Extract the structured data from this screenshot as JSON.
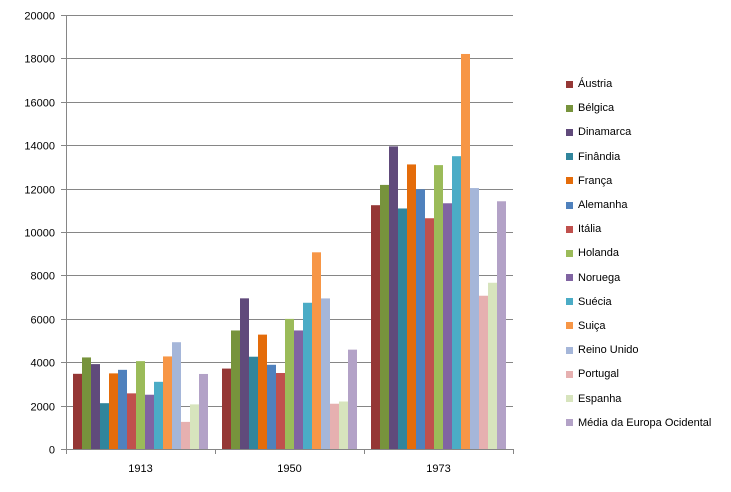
{
  "chart_data": {
    "type": "bar",
    "title": "",
    "xlabel": "",
    "ylabel": "",
    "ylim": [
      0,
      20000
    ],
    "yticks": [
      0,
      2000,
      4000,
      6000,
      8000,
      10000,
      12000,
      14000,
      16000,
      18000,
      20000
    ],
    "grid": true,
    "legend_position": "right",
    "categories": [
      "1913",
      "1950",
      "1973"
    ],
    "series": [
      {
        "name": "Áustria",
        "color": "#953735",
        "values": [
          3465,
          3706,
          11235
        ]
      },
      {
        "name": "Bélgica",
        "color": "#77933C",
        "values": [
          4220,
          5462,
          12170
        ]
      },
      {
        "name": "Dinamarca",
        "color": "#604A7B",
        "values": [
          3912,
          6943,
          13945
        ]
      },
      {
        "name": "Finândia",
        "color": "#31859C",
        "values": [
          2111,
          4253,
          11085
        ]
      },
      {
        "name": "França",
        "color": "#E46C0A",
        "values": [
          3485,
          5271,
          13114
        ]
      },
      {
        "name": "Alemanha",
        "color": "#4F81BD",
        "values": [
          3648,
          3881,
          11966
        ]
      },
      {
        "name": "Itália",
        "color": "#C0504D",
        "values": [
          2564,
          3502,
          10634
        ]
      },
      {
        "name": "Holanda",
        "color": "#9BBB59",
        "values": [
          4049,
          5996,
          13082
        ]
      },
      {
        "name": "Noruega",
        "color": "#8064A2",
        "values": [
          2501,
          5463,
          11324
        ]
      },
      {
        "name": "Suécia",
        "color": "#4BACC6",
        "values": [
          3096,
          6739,
          13493
        ]
      },
      {
        "name": "Suiça",
        "color": "#F79646",
        "values": [
          4266,
          9064,
          18204
        ]
      },
      {
        "name": "Reino Unido",
        "color": "#A5B6D9",
        "values": [
          4921,
          6939,
          12025
        ]
      },
      {
        "name": "Portugal",
        "color": "#E6B0B0",
        "values": [
          1250,
          2086,
          7063
        ]
      },
      {
        "name": "Espanha",
        "color": "#D7E4BD",
        "values": [
          2056,
          2189,
          7661
        ]
      },
      {
        "name": "Média da Europa Ocidental",
        "color": "#B3A2C7",
        "values": [
          3458,
          4579,
          11416
        ]
      }
    ]
  }
}
